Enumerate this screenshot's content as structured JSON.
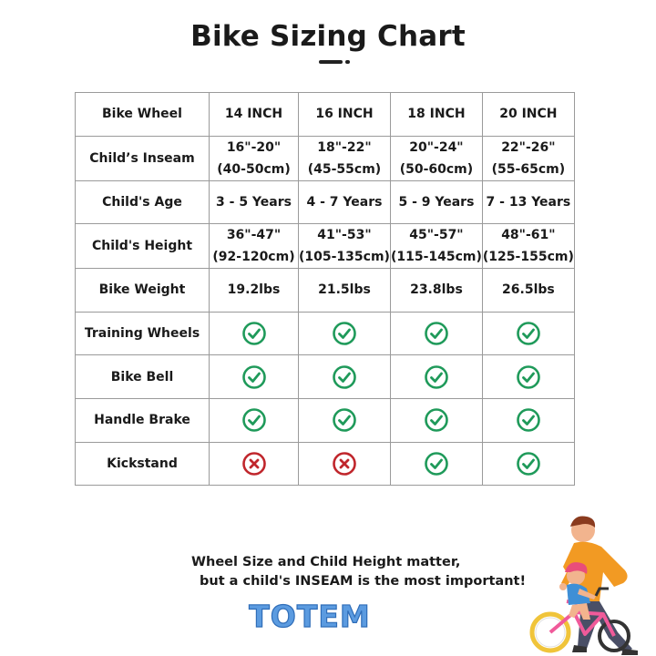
{
  "page": {
    "title": "Bike Sizing Chart"
  },
  "table": {
    "header": {
      "label": "Bike Wheel",
      "cells": [
        "14 INCH",
        "16 INCH",
        "18 INCH",
        "20 INCH"
      ]
    },
    "rows": [
      {
        "label": "Child’s Inseam",
        "cells": [
          [
            "16\"-20\"",
            "(40-50cm)"
          ],
          [
            "18\"-22\"",
            "(45-55cm)"
          ],
          [
            "20\"-24\"",
            "(50-60cm)"
          ],
          [
            "22\"-26\"",
            "(55-65cm)"
          ]
        ]
      },
      {
        "label": "Child's Age",
        "cells": [
          [
            "3 - 5 Years"
          ],
          [
            "4 - 7 Years"
          ],
          [
            "5 - 9 Years"
          ],
          [
            "7 - 13 Years"
          ]
        ]
      },
      {
        "label": "Child's Height",
        "cells": [
          [
            "36\"-47\"",
            "(92-120cm)"
          ],
          [
            "41\"-53\"",
            "(105-135cm)"
          ],
          [
            "45\"-57\"",
            "(115-145cm)"
          ],
          [
            "48\"-61\"",
            "(125-155cm)"
          ]
        ]
      },
      {
        "label": "Bike Weight",
        "cells": [
          [
            "19.2lbs"
          ],
          [
            "21.5lbs"
          ],
          [
            "23.8lbs"
          ],
          [
            "26.5lbs"
          ]
        ]
      }
    ],
    "feature_rows": [
      {
        "label": "Training Wheels",
        "included": [
          true,
          true,
          true,
          true
        ]
      },
      {
        "label": "Bike Bell",
        "included": [
          true,
          true,
          true,
          true
        ]
      },
      {
        "label": "Handle Brake",
        "included": [
          true,
          true,
          true,
          true
        ]
      },
      {
        "label": "Kickstand",
        "included": [
          false,
          false,
          true,
          true
        ]
      }
    ],
    "icons": {
      "yes": "check-circle-icon",
      "no": "x-circle-icon"
    },
    "colors": {
      "yes": "#1f9a5a",
      "no": "#c0262c",
      "border": "#9a9a9a"
    }
  },
  "footer": {
    "line1": "Wheel Size and Child Height matter,",
    "line2": "but a child's INSEAM is the most important!"
  },
  "brand": {
    "name": "TOTEM",
    "color": "#5b9be0"
  }
}
